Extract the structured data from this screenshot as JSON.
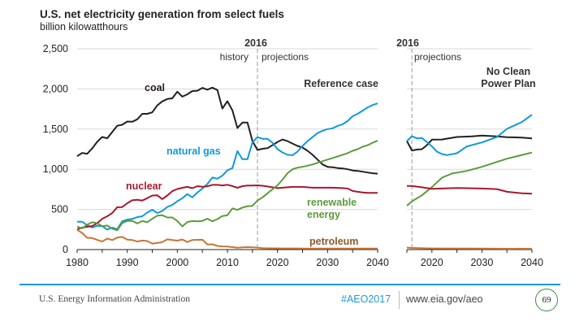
{
  "title": "U.S. net electricity generation from select fuels",
  "subtitle": "billion kilowatthours",
  "annotations": {
    "year": "2016",
    "history": "history",
    "projections": "projections",
    "reference_case": "Reference case",
    "no_cpp_line1": "No Clean",
    "no_cpp_line2": "Power Plan"
  },
  "series_labels": {
    "coal": "coal",
    "natural_gas": "natural gas",
    "nuclear": "nuclear",
    "renewable_line1": "renewable",
    "renewable_line2": "energy",
    "petroleum": "petroleum"
  },
  "colors": {
    "coal": "#231f20",
    "natural_gas": "#0f9ad9",
    "nuclear": "#a6192e",
    "renewable": "#5d9b3d",
    "petroleum": "#c87533",
    "grid": "#d9d9d9",
    "accent": "#1a9ad6"
  },
  "footer": {
    "org": "U.S. Energy Information Administration",
    "tag": "#AEO2017",
    "url": "www.eia.gov/aeo",
    "page": "69"
  },
  "chart_data": [
    {
      "type": "line",
      "panel": "Reference case",
      "xlim": [
        1980,
        2040
      ],
      "ylim": [
        0,
        2500
      ],
      "xticks": [
        "1980",
        "1990",
        "2000",
        "2010",
        "2020",
        "2030",
        "2040"
      ],
      "yticks": [
        "0",
        "500",
        "1,000",
        "1,500",
        "2,000",
        "2,500"
      ],
      "grid": true,
      "series": [
        {
          "name": "coal",
          "key": "coal",
          "x0": 1980,
          "values": [
            1162,
            1203,
            1192,
            1259,
            1342,
            1402,
            1386,
            1464,
            1541,
            1554,
            1594,
            1591,
            1621,
            1690,
            1690,
            1709,
            1796,
            1845,
            1874,
            1884,
            1966,
            1904,
            1933,
            1974,
            1978,
            2013,
            1991,
            2016,
            1986,
            1756,
            1847,
            1733,
            1514,
            1581,
            1582,
            1352,
            1240,
            1255,
            1262,
            1300,
            1340,
            1370,
            1350,
            1320,
            1290,
            1270,
            1230,
            1180,
            1120,
            1060,
            1030,
            1025,
            1015,
            1010,
            1000,
            985,
            980,
            970,
            960,
            950,
            945
          ]
        },
        {
          "name": "natural gas",
          "key": "natural_gas",
          "x0": 1980,
          "values": [
            346,
            346,
            305,
            274,
            297,
            292,
            249,
            273,
            253,
            352,
            373,
            382,
            404,
            415,
            461,
            496,
            455,
            480,
            531,
            556,
            601,
            640,
            691,
            650,
            710,
            761,
            816,
            897,
            883,
            921,
            988,
            1014,
            1226,
            1125,
            1126,
            1334,
            1400,
            1380,
            1380,
            1330,
            1250,
            1210,
            1180,
            1175,
            1220,
            1290,
            1350,
            1400,
            1450,
            1480,
            1500,
            1510,
            1540,
            1560,
            1600,
            1660,
            1690,
            1730,
            1770,
            1800,
            1820
          ]
        },
        {
          "name": "nuclear",
          "key": "nuclear",
          "x0": 1980,
          "values": [
            251,
            273,
            283,
            294,
            328,
            384,
            414,
            455,
            527,
            529,
            577,
            613,
            619,
            610,
            640,
            673,
            675,
            629,
            673,
            728,
            754,
            769,
            780,
            764,
            789,
            782,
            787,
            806,
            806,
            799,
            807,
            790,
            769,
            789,
            797,
            797,
            800,
            795,
            785,
            775,
            765,
            770,
            775,
            780,
            780,
            780,
            775,
            770,
            770,
            770,
            770,
            770,
            768,
            765,
            760,
            730,
            720,
            712,
            705,
            705,
            705
          ]
        },
        {
          "name": "renewable energy",
          "key": "renewable",
          "x0": 1980,
          "values": [
            285,
            265,
            310,
            340,
            330,
            290,
            300,
            260,
            240,
            330,
            357,
            357,
            326,
            355,
            340,
            384,
            422,
            428,
            400,
            400,
            356,
            288,
            343,
            355,
            351,
            357,
            385,
            352,
            380,
            418,
            427,
            513,
            494,
            523,
            540,
            545,
            610,
            650,
            700,
            750,
            800,
            870,
            950,
            1000,
            1020,
            1030,
            1045,
            1060,
            1080,
            1100,
            1120,
            1140,
            1160,
            1180,
            1200,
            1230,
            1250,
            1280,
            1300,
            1330,
            1355
          ]
        },
        {
          "name": "petroleum",
          "key": "petroleum",
          "x0": 1980,
          "values": [
            246,
            206,
            147,
            144,
            120,
            100,
            137,
            118,
            149,
            158,
            124,
            119,
            100,
            112,
            106,
            75,
            82,
            93,
            128,
            118,
            111,
            125,
            94,
            119,
            121,
            122,
            64,
            66,
            46,
            39,
            37,
            30,
            23,
            27,
            30,
            28,
            24,
            18,
            16,
            15,
            15,
            14,
            14,
            14,
            14,
            13,
            13,
            13,
            13,
            13,
            13,
            13,
            12,
            12,
            12,
            12,
            12,
            12,
            12,
            12,
            12
          ]
        }
      ]
    },
    {
      "type": "line",
      "panel": "No Clean Power Plan",
      "xlim": [
        2015,
        2040
      ],
      "ylim": [
        0,
        2500
      ],
      "xticks": [
        "2020",
        "2030",
        "2040"
      ],
      "grid": true,
      "series": [
        {
          "key": "coal",
          "x": [
            2015,
            2016,
            2017,
            2018,
            2019,
            2020,
            2022,
            2025,
            2028,
            2030,
            2033,
            2035,
            2038,
            2040
          ],
          "values": [
            1351,
            1233,
            1245,
            1250,
            1300,
            1368,
            1370,
            1402,
            1410,
            1419,
            1410,
            1400,
            1395,
            1385
          ]
        },
        {
          "key": "natural_gas",
          "x": [
            2015,
            2016,
            2017,
            2018,
            2019,
            2020,
            2021,
            2022,
            2023,
            2025,
            2027,
            2030,
            2033,
            2035,
            2038,
            2040
          ],
          "values": [
            1351,
            1412,
            1385,
            1390,
            1340,
            1284,
            1220,
            1189,
            1176,
            1199,
            1284,
            1334,
            1402,
            1503,
            1588,
            1679
          ]
        },
        {
          "key": "renewable",
          "x": [
            2015,
            2016,
            2018,
            2020,
            2022,
            2024,
            2027,
            2030,
            2035,
            2040
          ],
          "values": [
            547,
            600,
            676,
            777,
            895,
            946,
            980,
            1030,
            1132,
            1209
          ]
        },
        {
          "key": "nuclear",
          "x": [
            2015,
            2016,
            2018,
            2020,
            2025,
            2030,
            2033,
            2035,
            2038,
            2040
          ],
          "values": [
            791,
            791,
            775,
            757,
            767,
            760,
            753,
            720,
            700,
            696
          ]
        },
        {
          "key": "petroleum",
          "x": [
            2015,
            2016,
            2020,
            2030,
            2040
          ],
          "values": [
            25,
            20,
            14,
            12,
            10
          ]
        }
      ]
    }
  ]
}
